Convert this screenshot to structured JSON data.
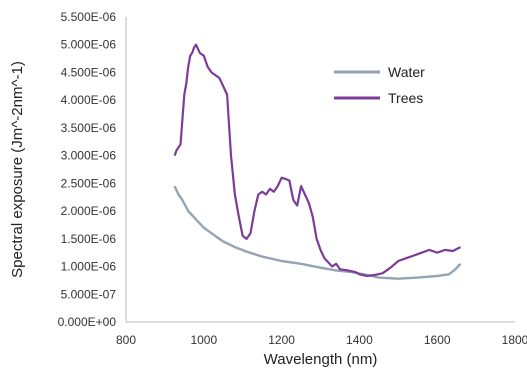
{
  "chart_data": {
    "type": "line",
    "xlabel": "Wavelength (nm)",
    "ylabel": "Spectral exposure (Jm^-2nm^-1)",
    "xlim": [
      800,
      1800
    ],
    "ylim": [
      0,
      5.5e-06
    ],
    "xticks": [
      800,
      1000,
      1200,
      1400,
      1600,
      1800
    ],
    "xtick_labels": [
      "800",
      "1000",
      "1200",
      "1400",
      "1600",
      "1800"
    ],
    "yticks": [
      0,
      5e-07,
      1e-06,
      1.5e-06,
      2e-06,
      2.5e-06,
      3e-06,
      3.5e-06,
      4e-06,
      4.5e-06,
      5e-06,
      5.5e-06
    ],
    "ytick_labels": [
      "0.000E+00",
      "5.000E-07",
      "1.000E-06",
      "1.500E-06",
      "2.000E-06",
      "2.500E-06",
      "3.000E-06",
      "3.500E-06",
      "4.000E-06",
      "4.500E-06",
      "5.000E-06",
      "5.500E-06"
    ],
    "grid": "none",
    "legend_position": "top-right",
    "series": [
      {
        "name": "Water",
        "color": "#95a3b3",
        "x": [
          925,
          935,
          945,
          960,
          980,
          1000,
          1020,
          1050,
          1080,
          1110,
          1150,
          1200,
          1250,
          1300,
          1340,
          1380,
          1420,
          1450,
          1500,
          1550,
          1600,
          1630,
          1645,
          1660
        ],
        "y": [
          2.45e-06,
          2.3e-06,
          2.2e-06,
          2e-06,
          1.85e-06,
          1.7e-06,
          1.6e-06,
          1.45e-06,
          1.35e-06,
          1.27e-06,
          1.18e-06,
          1.1e-06,
          1.05e-06,
          9.8e-07,
          9.3e-07,
          9e-07,
          8.5e-07,
          8e-07,
          7.8e-07,
          8e-07,
          8.3e-07,
          8.6e-07,
          9.4e-07,
          1.05e-06
        ]
      },
      {
        "name": "Trees",
        "color": "#7d3c98",
        "x": [
          925,
          930,
          940,
          950,
          955,
          960,
          965,
          970,
          975,
          980,
          990,
          1000,
          1010,
          1020,
          1040,
          1060,
          1070,
          1080,
          1090,
          1100,
          1110,
          1120,
          1130,
          1140,
          1150,
          1160,
          1170,
          1180,
          1190,
          1200,
          1210,
          1220,
          1230,
          1240,
          1250,
          1260,
          1270,
          1280,
          1290,
          1300,
          1310,
          1330,
          1340,
          1350,
          1370,
          1390,
          1400,
          1420,
          1440,
          1460,
          1480,
          1500,
          1520,
          1540,
          1560,
          1580,
          1600,
          1620,
          1640,
          1660
        ],
        "y": [
          3e-06,
          3.1e-06,
          3.2e-06,
          4.1e-06,
          4.3e-06,
          4.6e-06,
          4.8e-06,
          4.85e-06,
          4.95e-06,
          5e-06,
          4.85e-06,
          4.8e-06,
          4.6e-06,
          4.5e-06,
          4.4e-06,
          4.1e-06,
          3e-06,
          2.3e-06,
          1.9e-06,
          1.55e-06,
          1.5e-06,
          1.6e-06,
          2e-06,
          2.3e-06,
          2.35e-06,
          2.3e-06,
          2.4e-06,
          2.35e-06,
          2.45e-06,
          2.6e-06,
          2.58e-06,
          2.55e-06,
          2.2e-06,
          2.1e-06,
          2.45e-06,
          2.3e-06,
          2.15e-06,
          1.9e-06,
          1.5e-06,
          1.3e-06,
          1.15e-06,
          1e-06,
          1.05e-06,
          9.5e-07,
          9.3e-07,
          9e-07,
          8.6e-07,
          8.3e-07,
          8.5e-07,
          8.8e-07,
          9.8e-07,
          1.1e-06,
          1.15e-06,
          1.2e-06,
          1.25e-06,
          1.3e-06,
          1.25e-06,
          1.3e-06,
          1.28e-06,
          1.35e-06
        ]
      }
    ]
  }
}
